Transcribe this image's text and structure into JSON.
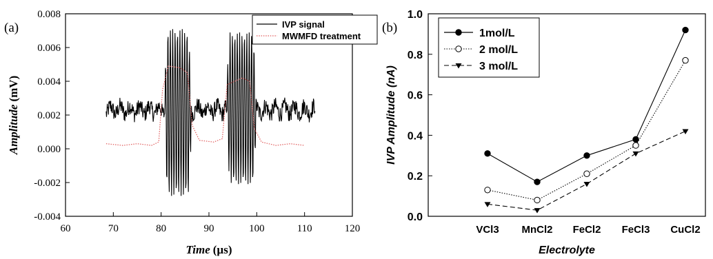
{
  "chart_data": [
    {
      "panel_label": "(a)",
      "type": "line",
      "xlabel": "Time",
      "xlabel_unit": "(µs)",
      "ylabel": "Amplitude",
      "ylabel_unit": "(mV)",
      "xlim": [
        60,
        120
      ],
      "ylim": [
        -0.004,
        0.008
      ],
      "x_ticks": [
        "60",
        "70",
        "80",
        "90",
        "100",
        "110",
        "120"
      ],
      "y_ticks": [
        "-0.004",
        "-0.002",
        "0.000",
        "0.002",
        "0.004",
        "0.006",
        "0.008"
      ],
      "grid": false,
      "legend_position": "top-right",
      "series": [
        {
          "name": "IVP signal",
          "color": "#000000",
          "style": "solid",
          "baseline": 0.0023,
          "noise_amplitude": 0.0005,
          "x_range": [
            68.5,
            112.2
          ],
          "bursts": [
            {
              "start": 80.8,
              "end": 86.2,
              "peak_max": 0.0071,
              "peak_min": -0.0028
            },
            {
              "start": 93.8,
              "end": 99.8,
              "peak_max": 0.0069,
              "peak_min": -0.0021
            }
          ]
        },
        {
          "name": "MWMFD treatment",
          "color": "#e05a5a",
          "style": "dotted",
          "x": [
            68.5,
            72,
            75,
            78,
            79.5,
            80.3,
            81.5,
            84,
            85.5,
            86.5,
            88,
            91,
            92.8,
            93.8,
            97,
            98.5,
            99.5,
            101,
            104,
            107,
            110
          ],
          "y": [
            0.0003,
            0.0002,
            0.0003,
            0.0002,
            0.0004,
            0.0035,
            0.0049,
            0.0048,
            0.0045,
            0.0014,
            0.0005,
            0.0004,
            0.0006,
            0.0038,
            0.0042,
            0.004,
            0.0012,
            0.0004,
            0.0002,
            0.0003,
            0.0002
          ]
        }
      ]
    },
    {
      "panel_label": "(b)",
      "type": "line",
      "xlabel": "Electrolyte",
      "ylabel": "IVP Amplitude (nA)",
      "ylim": [
        0.0,
        1.0
      ],
      "y_ticks": [
        "0.0",
        "0.2",
        "0.4",
        "0.6",
        "0.8",
        "1.0"
      ],
      "categories": [
        "VCl3",
        "MnCl2",
        "FeCl2",
        "FeCl3",
        "CuCl2"
      ],
      "grid": false,
      "legend_position": "top-left",
      "series": [
        {
          "name": "1mol/L",
          "values": [
            0.31,
            0.17,
            0.3,
            0.38,
            0.92
          ],
          "color": "#000000",
          "style": "solid",
          "marker": "filled-circle"
        },
        {
          "name": "2 mol/L",
          "values": [
            0.13,
            0.08,
            0.21,
            0.35,
            0.77
          ],
          "color": "#000000",
          "style": "dotted",
          "marker": "open-circle"
        },
        {
          "name": "3 mol/L",
          "values": [
            0.06,
            0.03,
            0.16,
            0.31,
            0.42
          ],
          "color": "#000000",
          "style": "dashed",
          "marker": "filled-triangle-down"
        }
      ]
    }
  ]
}
